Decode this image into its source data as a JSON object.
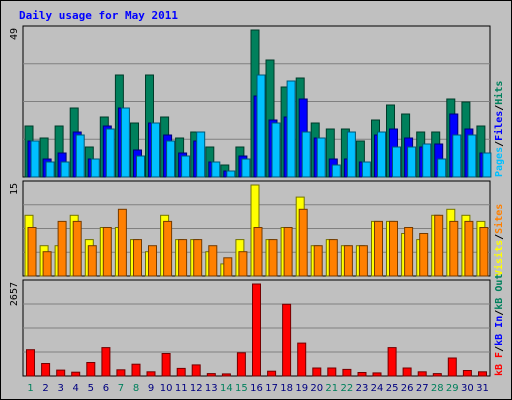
{
  "chart_data": [
    {
      "type": "bar",
      "title": "Daily usage for May 2011",
      "ymax_label": "49",
      "ylim": [
        0,
        49
      ],
      "right_label": [
        "Pages",
        "/",
        "Files",
        "/",
        "Hits"
      ],
      "right_label_colors": [
        "#00c0ff",
        "#000000",
        "#0000ff",
        "#000000",
        "#00805c"
      ],
      "categories": [
        "1",
        "2",
        "3",
        "4",
        "5",
        "6",
        "7",
        "8",
        "9",
        "10",
        "11",
        "12",
        "13",
        "14",
        "15",
        "16",
        "17",
        "18",
        "19",
        "20",
        "21",
        "22",
        "23",
        "24",
        "25",
        "26",
        "27",
        "28",
        "29",
        "30",
        "31"
      ],
      "series": [
        {
          "name": "Hits",
          "color": "#00805c",
          "values": [
            17,
            13,
            17,
            23,
            10,
            20,
            34,
            18,
            34,
            20,
            13,
            15,
            10,
            4,
            10,
            49,
            39,
            30,
            33,
            18,
            16,
            16,
            12,
            19,
            24,
            21,
            15,
            15,
            26,
            25,
            17
          ]
        },
        {
          "name": "Files",
          "color": "#0000ff",
          "values": [
            12,
            6,
            8,
            15,
            6,
            17,
            23,
            9,
            18,
            14,
            8,
            12,
            5,
            2,
            7,
            27,
            19,
            20,
            26,
            13,
            6,
            6,
            5,
            14,
            16,
            13,
            10,
            11,
            21,
            16,
            8
          ]
        },
        {
          "name": "Pages",
          "color": "#00c0ff",
          "values": [
            12,
            5,
            5,
            14,
            6,
            16,
            23,
            7,
            18,
            12,
            7,
            15,
            5,
            2,
            6,
            34,
            18,
            32,
            15,
            13,
            4,
            15,
            5,
            15,
            10,
            10,
            11,
            6,
            14,
            14,
            8
          ]
        }
      ]
    },
    {
      "type": "bar",
      "ymax_label": "15",
      "ylim": [
        0,
        15
      ],
      "right_label": [
        "Visits",
        "/",
        "Sites"
      ],
      "right_label_colors": [
        "#ffff00",
        "#000000",
        "#ff8000"
      ],
      "categories": [
        "1",
        "2",
        "3",
        "4",
        "5",
        "6",
        "7",
        "8",
        "9",
        "10",
        "11",
        "12",
        "13",
        "14",
        "15",
        "16",
        "17",
        "18",
        "19",
        "20",
        "21",
        "22",
        "23",
        "24",
        "25",
        "26",
        "27",
        "28",
        "29",
        "30",
        "31"
      ],
      "series": [
        {
          "name": "Visits",
          "color": "#ffff00",
          "values": [
            10,
            5,
            5,
            10,
            6,
            8,
            8,
            6,
            4,
            10,
            6,
            6,
            4,
            2,
            6,
            15,
            6,
            8,
            13,
            5,
            6,
            5,
            5,
            9,
            9,
            7,
            6,
            10,
            11,
            10,
            9
          ]
        },
        {
          "name": "Sites",
          "color": "#ff8000",
          "values": [
            8,
            4,
            9,
            9,
            5,
            8,
            11,
            6,
            5,
            9,
            6,
            6,
            5,
            3,
            4,
            8,
            6,
            8,
            11,
            5,
            6,
            5,
            5,
            9,
            9,
            8,
            7,
            10,
            9,
            9,
            8
          ]
        }
      ]
    },
    {
      "type": "bar",
      "ymax_label": "2657",
      "ylim": [
        0,
        2657
      ],
      "right_label": [
        "kB F",
        "/",
        "kB In",
        "/",
        "kB Out"
      ],
      "right_label_colors": [
        "#ff0000",
        "#000000",
        "#0000ff",
        "#000000",
        "#00805c"
      ],
      "categories": [
        "1",
        "2",
        "3",
        "4",
        "5",
        "6",
        "7",
        "8",
        "9",
        "10",
        "11",
        "12",
        "13",
        "14",
        "15",
        "16",
        "17",
        "18",
        "19",
        "20",
        "21",
        "22",
        "23",
        "24",
        "25",
        "26",
        "27",
        "28",
        "29",
        "30",
        "31"
      ],
      "series": [
        {
          "name": "kB F",
          "color": "#ff0000",
          "values": [
            760,
            360,
            170,
            110,
            390,
            820,
            180,
            340,
            120,
            650,
            220,
            320,
            70,
            60,
            670,
            2657,
            140,
            2070,
            950,
            230,
            230,
            190,
            100,
            90,
            820,
            230,
            120,
            70,
            520,
            160,
            120
          ]
        }
      ]
    }
  ],
  "days": [
    "1",
    "2",
    "3",
    "4",
    "5",
    "6",
    "7",
    "8",
    "9",
    "10",
    "11",
    "12",
    "13",
    "14",
    "15",
    "16",
    "17",
    "18",
    "19",
    "20",
    "21",
    "22",
    "23",
    "24",
    "25",
    "26",
    "27",
    "28",
    "29",
    "30",
    "31"
  ],
  "weekend_days": [
    1,
    7,
    8,
    14,
    15,
    21,
    22,
    28,
    29
  ]
}
